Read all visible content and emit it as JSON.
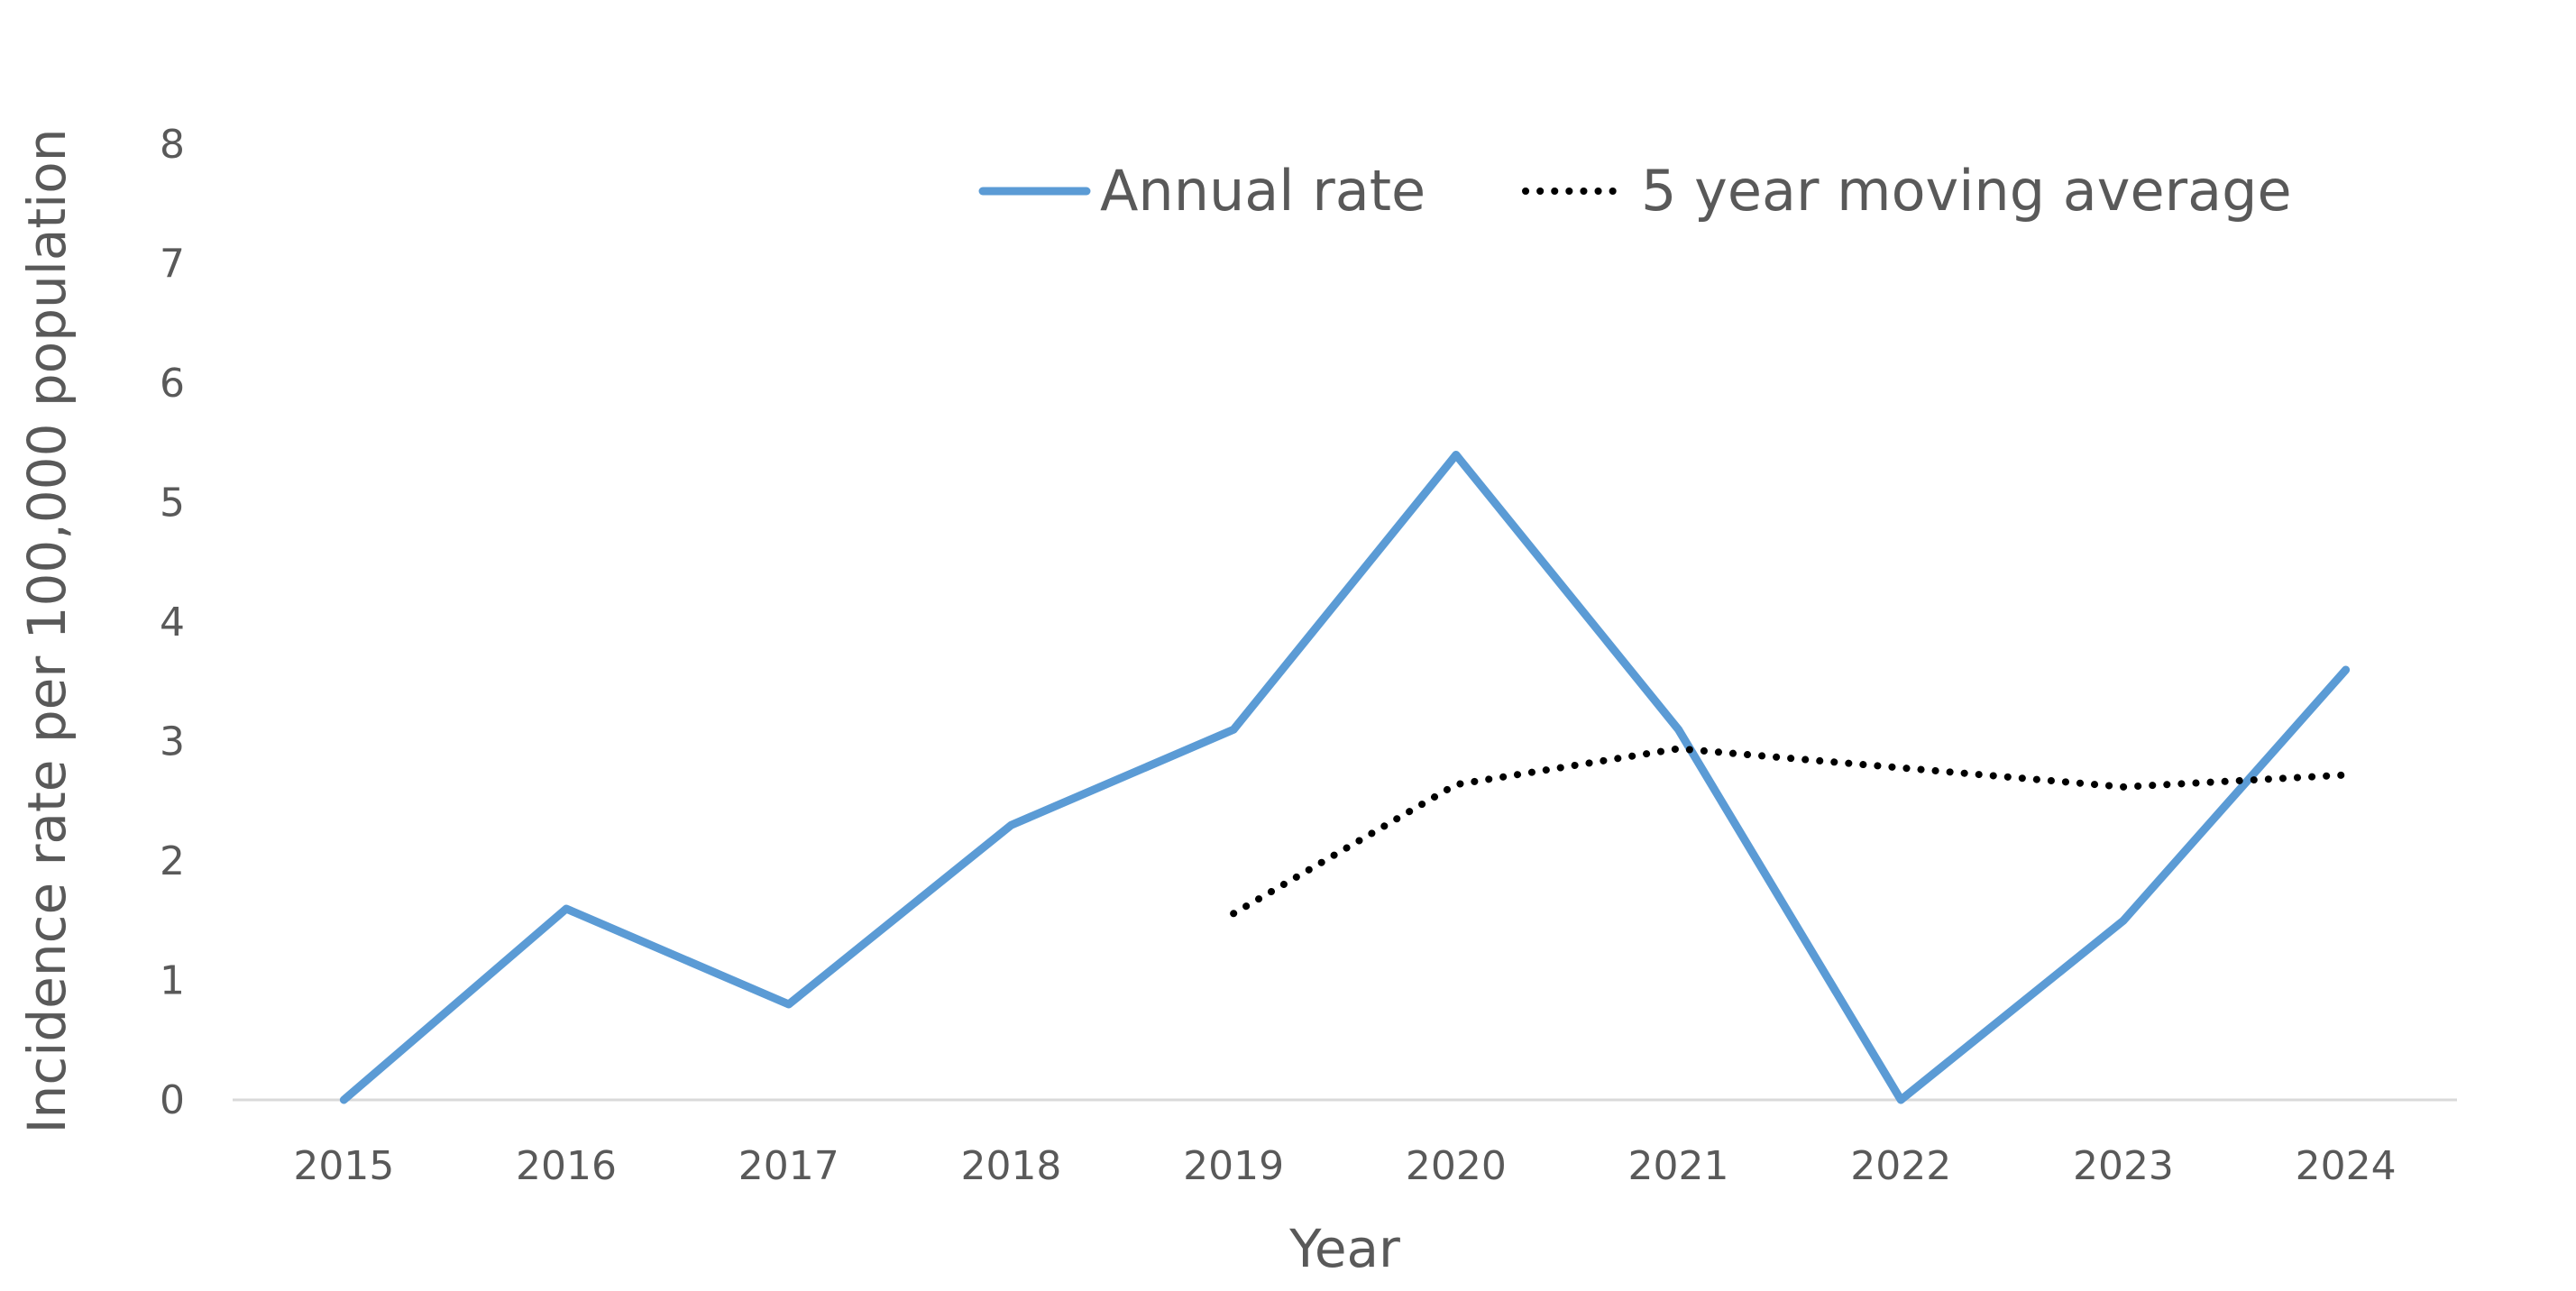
{
  "chart_data": {
    "type": "line",
    "title": "",
    "xlabel": "Year",
    "ylabel": "Incidence rate per 100,000 population",
    "categories": [
      "2015",
      "2016",
      "2017",
      "2018",
      "2019",
      "2020",
      "2021",
      "2022",
      "2023",
      "2024"
    ],
    "ylim": [
      0,
      8
    ],
    "yticks": [
      "0",
      "1",
      "2",
      "3",
      "4",
      "5",
      "6",
      "7",
      "8"
    ],
    "grid": false,
    "legend_position": "top",
    "series": [
      {
        "name": "Annual rate",
        "style": "solid",
        "color": "#5B9BD5",
        "values": [
          0,
          1.6,
          0.8,
          2.3,
          3.1,
          5.4,
          3.1,
          0,
          1.5,
          3.6
        ]
      },
      {
        "name": "5 year moving average",
        "style": "dotted",
        "color": "#000000",
        "values": [
          null,
          null,
          null,
          null,
          1.56,
          2.64,
          2.94,
          2.78,
          2.62,
          2.72
        ]
      }
    ]
  }
}
